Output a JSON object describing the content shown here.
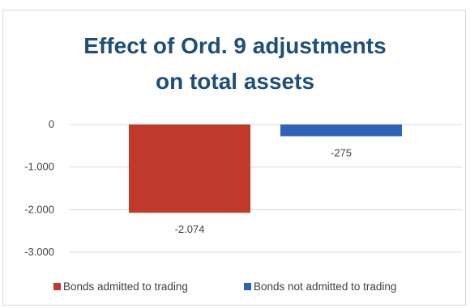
{
  "chart_data": {
    "type": "bar",
    "title_lines": [
      "Effect of Ord. 9 adjustments",
      "on total assets"
    ],
    "series": [
      {
        "name": "Bonds admitted to trading",
        "values": [
          -2074
        ],
        "label": "-2.074",
        "color": "#c0392b"
      },
      {
        "name": "Bonds not admitted to trading",
        "values": [
          -275
        ],
        "label": "-275",
        "color": "#2e63b8"
      }
    ],
    "ylim": [
      -3000,
      0
    ],
    "y_ticks": [
      0,
      -1000,
      -2000,
      -3000
    ],
    "y_tick_labels": [
      "0",
      "-1.000",
      "-2.000",
      "-3.000"
    ],
    "grid": true,
    "legend_position": "bottom"
  }
}
